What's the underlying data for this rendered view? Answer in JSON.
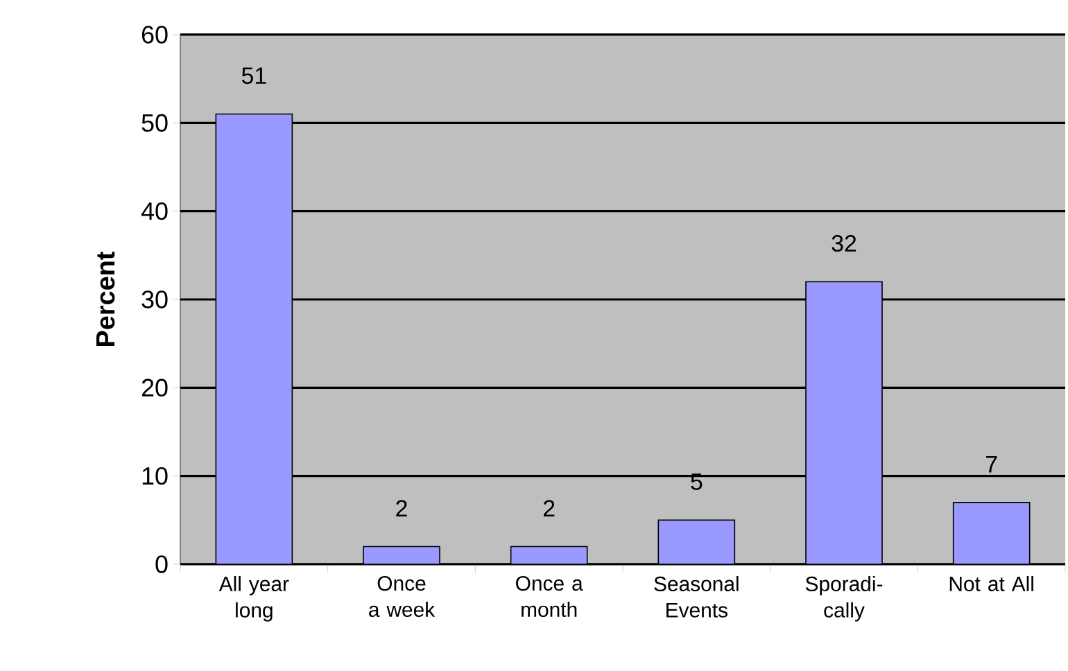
{
  "chart_data": {
    "type": "bar",
    "ylabel": "Percent",
    "categories": [
      "All year long",
      "Once a week",
      "Once a month",
      "Seasonal Events",
      "Sporadi-cally",
      "Not at All"
    ],
    "values": [
      51,
      2,
      2,
      5,
      32,
      7
    ],
    "color": "#9999ff",
    "ylim": [
      0,
      60
    ],
    "yticks": [
      0,
      10,
      20,
      30,
      40,
      50,
      60
    ],
    "grid": "y",
    "data_labels": true
  }
}
